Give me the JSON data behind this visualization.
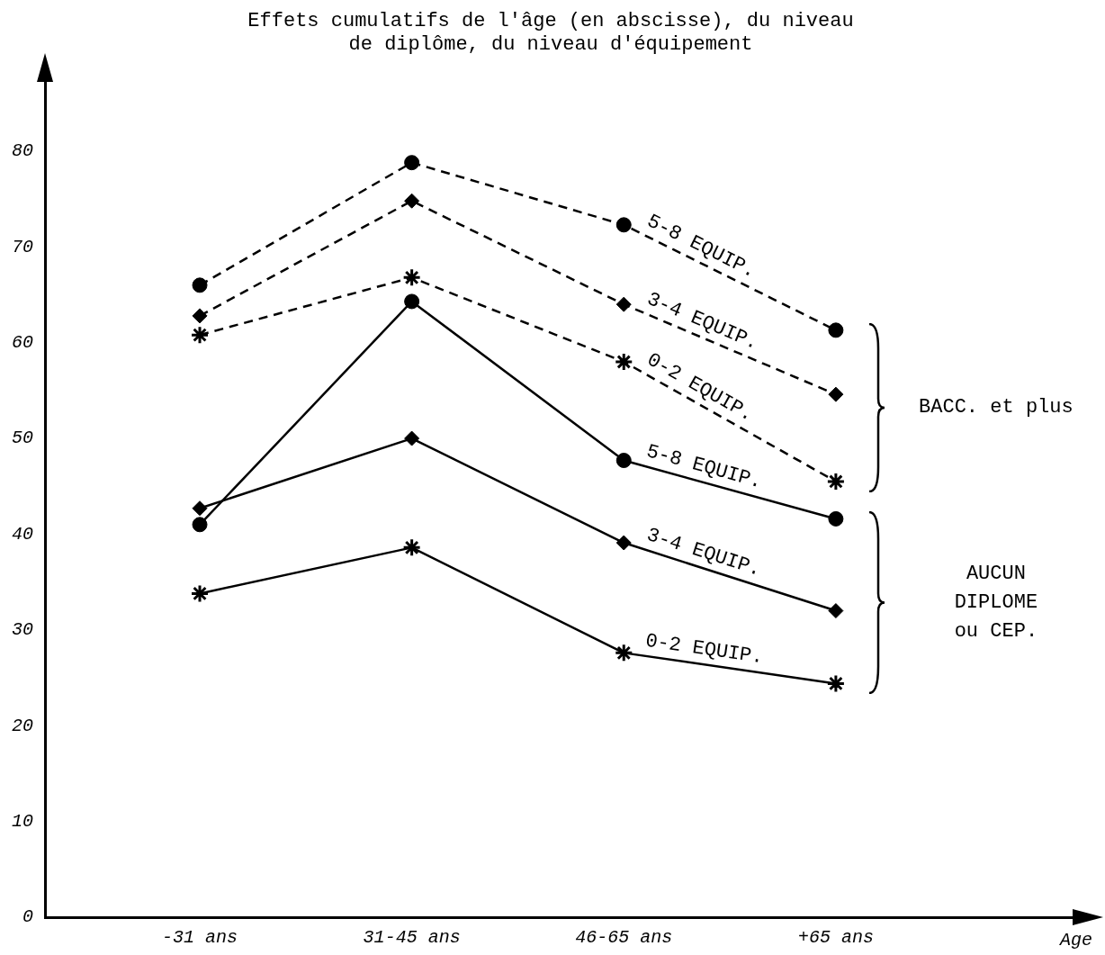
{
  "chart_data": {
    "type": "line",
    "title": "Effets cumulatifs de l'âge (en abscisse), du niveau\nde diplôme, du niveau d'équipement",
    "xlabel": "Age",
    "categories": [
      "-31 ans",
      "31-45 ans",
      "46-65 ans",
      "+65 ans"
    ],
    "series": [
      {
        "name": "5-8 EQUIP.",
        "color": "#000000",
        "marker": "circle",
        "line_style": "dashed",
        "values": [
          66.0,
          78.8,
          72.3,
          61.3
        ]
      },
      {
        "name": "3-4 EQUIP.",
        "color": "#000000",
        "marker": "diamond",
        "line_style": "dashed",
        "values": [
          62.8,
          74.8,
          64.0,
          54.6
        ]
      },
      {
        "name": "0-2 EQUIP.",
        "color": "#000000",
        "marker": "cross",
        "line_style": "dashed",
        "values": [
          60.8,
          66.8,
          58.0,
          45.5
        ]
      },
      {
        "name": "5-8 EQUIP.",
        "color": "#000000",
        "marker": "circle",
        "line_style": "solid",
        "values": [
          41.0,
          64.3,
          47.7,
          41.6
        ]
      },
      {
        "name": "3-4 EQUIP.",
        "color": "#000000",
        "marker": "diamond",
        "line_style": "solid",
        "values": [
          42.7,
          50.0,
          39.1,
          32.0
        ]
      },
      {
        "name": "0-2 EQUIP.",
        "color": "#000000",
        "marker": "cross",
        "line_style": "solid",
        "values": [
          33.8,
          38.6,
          27.6,
          24.4
        ]
      }
    ],
    "annotations": [
      "BACC. et plus",
      "AUCUN\nDIPLOME\nou CEP."
    ],
    "ylim": [
      0,
      88
    ],
    "yticks": [
      0,
      10,
      20,
      30,
      40,
      50,
      60,
      70,
      80
    ],
    "grid": false,
    "legend": false
  }
}
